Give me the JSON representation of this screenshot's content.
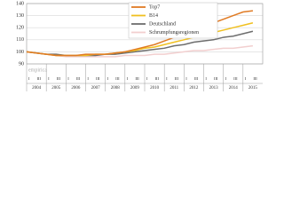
{
  "chart_data": {
    "type": "line",
    "x": [
      2004,
      2004.5,
      2005,
      2005.5,
      2006,
      2006.5,
      2007,
      2007.5,
      2008,
      2008.5,
      2009,
      2009.5,
      2010,
      2010.5,
      2011,
      2011.5,
      2012,
      2012.5,
      2013,
      2013.5,
      2014,
      2014.5,
      2015,
      2015.5
    ],
    "series": [
      {
        "name": "Top7",
        "color": "#e07b24",
        "values": [
          100,
          99,
          98,
          97,
          97,
          97,
          98,
          98,
          98,
          99,
          100,
          102,
          104,
          106,
          109,
          112,
          115,
          118,
          121,
          124,
          127,
          130,
          133,
          134
        ]
      },
      {
        "name": "B14",
        "color": "#f0c020",
        "values": [
          100,
          99,
          98,
          97,
          97,
          97,
          97,
          98,
          98,
          99,
          100,
          101,
          103,
          104,
          106,
          108,
          110,
          112,
          114,
          116,
          118,
          120,
          122,
          124
        ]
      },
      {
        "name": "Deutschland",
        "color": "#6d6d6d",
        "values": [
          100,
          99,
          98,
          98,
          97,
          97,
          97,
          97,
          98,
          98,
          99,
          100,
          101,
          102,
          103,
          105,
          106,
          108,
          109,
          110,
          112,
          113,
          115,
          117
        ]
      },
      {
        "name": "Schrumpfungsregionen",
        "color": "#f2cfcf",
        "values": [
          100,
          99,
          98,
          97,
          96,
          96,
          96,
          96,
          96,
          96,
          97,
          97,
          97,
          98,
          98,
          99,
          100,
          101,
          101,
          102,
          103,
          103,
          104,
          105
        ]
      }
    ],
    "years": [
      2004,
      2005,
      2006,
      2007,
      2008,
      2009,
      2010,
      2011,
      2012,
      2013,
      2014,
      2015
    ],
    "quarter_labels": [
      "I",
      "III"
    ],
    "xlim": [
      2004,
      2016
    ],
    "ylim": [
      90,
      140
    ],
    "yticks": [
      90,
      100,
      110,
      120,
      130,
      140
    ],
    "grid": true,
    "source": "empirica"
  }
}
